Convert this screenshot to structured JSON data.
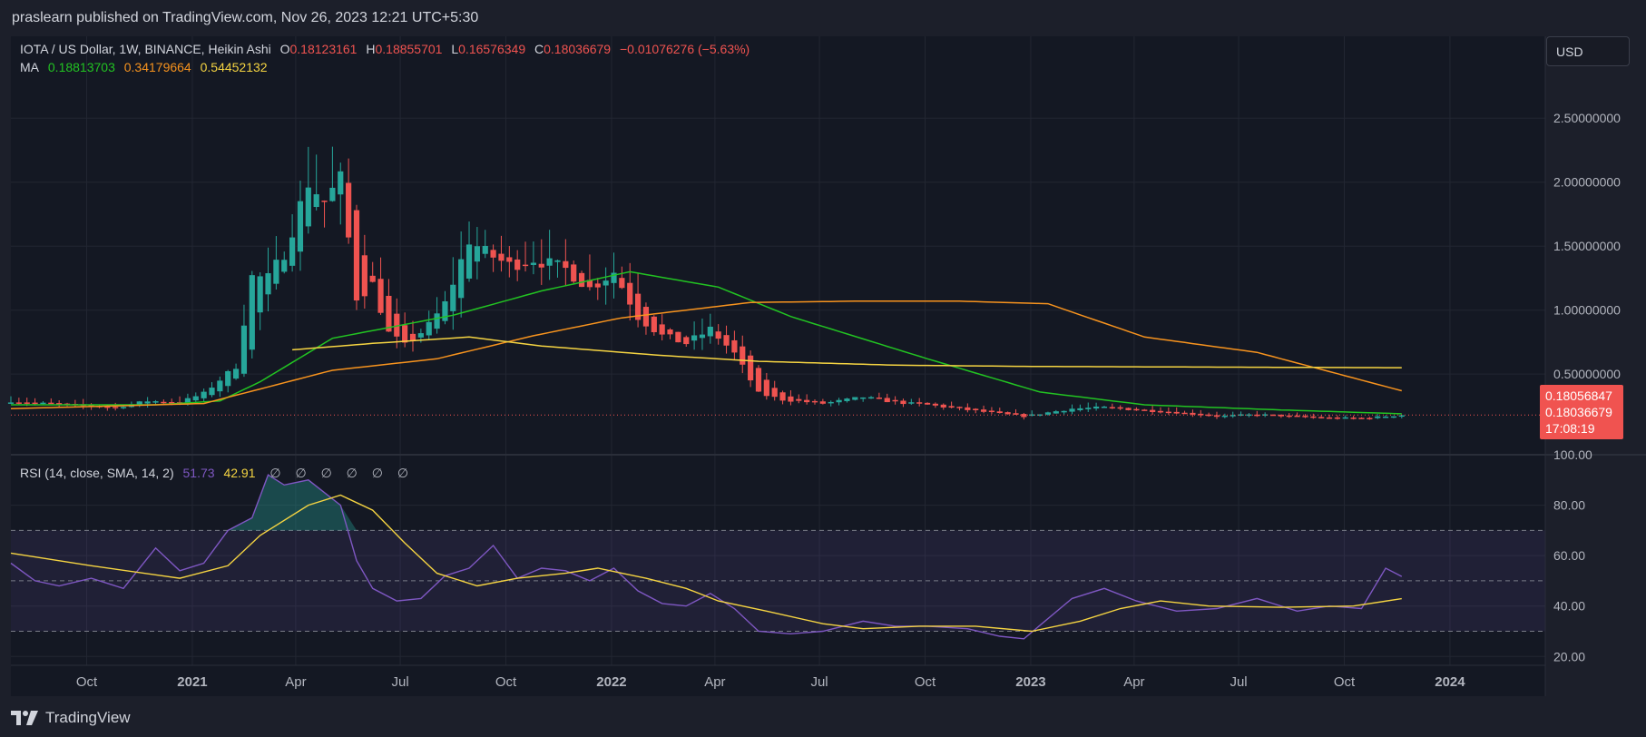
{
  "header": {
    "published": "praslearn published on TradingView.com, Nov 26, 2023 12:21 UTC+5:30"
  },
  "legend": {
    "symbol": "IOTA / US Dollar, 1W, BINANCE, Heikin Ashi",
    "o_label": "O",
    "o_value": "0.18123161",
    "h_label": "H",
    "h_value": "0.18855701",
    "l_label": "L",
    "l_value": "0.16576349",
    "c_label": "C",
    "c_value": "0.18036679",
    "change": "−0.01076276 (−5.63%)",
    "ma_label": "MA",
    "ma_values": [
      "0.18813703",
      "0.34179664",
      "0.54452132"
    ]
  },
  "rsi_legend": {
    "label": "RSI (14, close, SMA, 14, 2)",
    "rsi_value": "51.73",
    "rsi_ma_value": "42.91",
    "na_values": [
      "∅",
      "∅",
      "∅",
      "∅",
      "∅",
      "∅"
    ]
  },
  "currency_button": "USD",
  "last_price": {
    "label_1": "0.18056847",
    "label_2": "0.18036679",
    "countdown": "17:08:19",
    "value": 0.1804
  },
  "footer": {
    "brand": "TradingView"
  },
  "colors": {
    "background": "#1c1f2a",
    "up": "#26a69a",
    "down": "#ef5350",
    "ma1": "#22c322",
    "ma2": "#f7931e",
    "ma3": "#f5d442",
    "rsi": "#7e57c2",
    "rsi_ma": "#f5d442"
  },
  "chart_data": [
    {
      "type": "candlestick",
      "title": "IOTA / US Dollar, 1W, BINANCE, Heikin Ashi",
      "y_axis_labels": [
        "2.50000000",
        "2.00000000",
        "1.50000000",
        "1.00000000",
        "0.50000000"
      ],
      "y_ticks": [
        2.5,
        2.0,
        1.5,
        1.0,
        0.5
      ],
      "ylim": [
        -0.13,
        3.14
      ],
      "x_axis_labels": [
        "Oct",
        "2021",
        "Apr",
        "Jul",
        "Oct",
        "2022",
        "Apr",
        "Jul",
        "Oct",
        "2023",
        "Apr",
        "Jul",
        "Oct",
        "2024"
      ],
      "x_axis_dates": [
        "2020-10-01",
        "2021-01-01",
        "2021-04-01",
        "2021-07-01",
        "2021-10-01",
        "2022-01-01",
        "2022-04-01",
        "2022-07-01",
        "2022-10-01",
        "2023-01-01",
        "2023-04-01",
        "2023-07-01",
        "2023-10-01",
        "2024-01-01"
      ],
      "xlim": [
        "2020-07-27",
        "2024-03-24"
      ],
      "grid": true,
      "close_anchors": [
        [
          "2020-07-27",
          0.29
        ],
        [
          "2020-08-24",
          0.27
        ],
        [
          "2020-09-28",
          0.25
        ],
        [
          "2020-10-26",
          0.24
        ],
        [
          "2020-11-23",
          0.29
        ],
        [
          "2020-12-21",
          0.28
        ],
        [
          "2021-01-11",
          0.35
        ],
        [
          "2021-02-08",
          0.56
        ],
        [
          "2021-02-22",
          1.26
        ],
        [
          "2021-03-08",
          1.25
        ],
        [
          "2021-03-22",
          1.45
        ],
        [
          "2021-04-12",
          2.0
        ],
        [
          "2021-04-26",
          1.85
        ],
        [
          "2021-05-10",
          2.02
        ],
        [
          "2021-05-24",
          1.1
        ],
        [
          "2021-06-07",
          1.2
        ],
        [
          "2021-06-21",
          0.82
        ],
        [
          "2021-07-05",
          0.72
        ],
        [
          "2021-07-26",
          0.88
        ],
        [
          "2021-08-09",
          1.05
        ],
        [
          "2021-08-30",
          1.55
        ],
        [
          "2021-09-13",
          1.45
        ],
        [
          "2021-10-04",
          1.35
        ],
        [
          "2021-10-25",
          1.4
        ],
        [
          "2021-11-22",
          1.32
        ],
        [
          "2021-12-13",
          1.17
        ],
        [
          "2022-01-03",
          1.3
        ],
        [
          "2022-01-24",
          0.95
        ],
        [
          "2022-02-14",
          0.8
        ],
        [
          "2022-03-07",
          0.74
        ],
        [
          "2022-03-28",
          0.85
        ],
        [
          "2022-04-18",
          0.66
        ],
        [
          "2022-05-09",
          0.35
        ],
        [
          "2022-05-30",
          0.3
        ],
        [
          "2022-07-04",
          0.27
        ],
        [
          "2022-08-08",
          0.32
        ],
        [
          "2022-09-05",
          0.28
        ],
        [
          "2022-10-03",
          0.26
        ],
        [
          "2022-11-07",
          0.22
        ],
        [
          "2022-12-05",
          0.19
        ],
        [
          "2022-12-26",
          0.17
        ],
        [
          "2023-02-06",
          0.23
        ],
        [
          "2023-03-06",
          0.24
        ],
        [
          "2023-04-03",
          0.22
        ],
        [
          "2023-05-08",
          0.2
        ],
        [
          "2023-06-12",
          0.17
        ],
        [
          "2023-07-17",
          0.185
        ],
        [
          "2023-09-04",
          0.16
        ],
        [
          "2023-10-16",
          0.155
        ],
        [
          "2023-11-20",
          0.18
        ]
      ],
      "moving_averages": [
        {
          "name": "MA 0.18813703",
          "color": "#22c322",
          "points": [
            [
              "2020-07-27",
              0.26
            ],
            [
              "2020-11-30",
              0.26
            ],
            [
              "2021-01-25",
              0.29
            ],
            [
              "2021-03-01",
              0.44
            ],
            [
              "2021-05-03",
              0.78
            ],
            [
              "2021-08-16",
              0.96
            ],
            [
              "2021-11-01",
              1.15
            ],
            [
              "2022-01-17",
              1.3
            ],
            [
              "2022-04-04",
              1.18
            ],
            [
              "2022-06-06",
              0.95
            ],
            [
              "2022-10-03",
              0.62
            ],
            [
              "2023-01-09",
              0.36
            ],
            [
              "2023-04-10",
              0.26
            ],
            [
              "2023-08-07",
              0.22
            ],
            [
              "2023-11-20",
              0.19
            ]
          ]
        },
        {
          "name": "MA 0.34179664",
          "color": "#f7931e",
          "points": [
            [
              "2020-07-27",
              0.23
            ],
            [
              "2021-01-11",
              0.27
            ],
            [
              "2021-05-03",
              0.53
            ],
            [
              "2021-08-02",
              0.62
            ],
            [
              "2021-10-25",
              0.8
            ],
            [
              "2022-01-10",
              0.94
            ],
            [
              "2022-05-02",
              1.06
            ],
            [
              "2022-08-01",
              1.07
            ],
            [
              "2022-10-31",
              1.07
            ],
            [
              "2023-01-16",
              1.05
            ],
            [
              "2023-04-10",
              0.79
            ],
            [
              "2023-07-17",
              0.67
            ],
            [
              "2023-11-20",
              0.37
            ]
          ]
        },
        {
          "name": "MA 0.54452132",
          "color": "#f5d442",
          "points": [
            [
              "2021-03-29",
              0.69
            ],
            [
              "2021-06-07",
              0.74
            ],
            [
              "2021-08-30",
              0.79
            ],
            [
              "2021-11-01",
              0.72
            ],
            [
              "2022-02-07",
              0.65
            ],
            [
              "2022-05-09",
              0.6
            ],
            [
              "2022-09-05",
              0.57
            ],
            [
              "2023-01-02",
              0.56
            ],
            [
              "2023-06-05",
              0.555
            ],
            [
              "2023-11-20",
              0.55
            ]
          ]
        }
      ],
      "last_close": 0.18036679
    },
    {
      "type": "line",
      "title": "RSI (14, close, SMA, 14, 2)",
      "y_axis_labels": [
        "100.00",
        "80.00",
        "60.00",
        "40.00",
        "20.00"
      ],
      "y_ticks": [
        100,
        80,
        60,
        40,
        20
      ],
      "ylim": [
        16.5,
        100
      ],
      "bands": [
        30,
        50,
        70
      ],
      "series": [
        {
          "name": "RSI",
          "color": "#7e57c2",
          "points": [
            [
              "2020-07-27",
              57
            ],
            [
              "2020-08-17",
              50
            ],
            [
              "2020-09-07",
              48
            ],
            [
              "2020-10-05",
              51
            ],
            [
              "2020-11-02",
              47
            ],
            [
              "2020-11-30",
              63
            ],
            [
              "2020-12-21",
              54
            ],
            [
              "2021-01-11",
              57
            ],
            [
              "2021-02-01",
              70
            ],
            [
              "2021-02-22",
              75
            ],
            [
              "2021-03-08",
              92
            ],
            [
              "2021-03-22",
              88
            ],
            [
              "2021-04-12",
              90
            ],
            [
              "2021-04-26",
              85
            ],
            [
              "2021-05-10",
              80
            ],
            [
              "2021-05-24",
              58
            ],
            [
              "2021-06-07",
              47
            ],
            [
              "2021-06-28",
              42
            ],
            [
              "2021-07-19",
              43
            ],
            [
              "2021-08-09",
              52
            ],
            [
              "2021-08-30",
              55
            ],
            [
              "2021-09-20",
              64
            ],
            [
              "2021-10-11",
              51
            ],
            [
              "2021-11-01",
              55
            ],
            [
              "2021-11-22",
              54
            ],
            [
              "2021-12-13",
              50
            ],
            [
              "2022-01-03",
              55
            ],
            [
              "2022-01-24",
              46
            ],
            [
              "2022-02-14",
              41
            ],
            [
              "2022-03-07",
              40
            ],
            [
              "2022-03-28",
              45
            ],
            [
              "2022-04-18",
              39
            ],
            [
              "2022-05-09",
              30
            ],
            [
              "2022-06-06",
              29
            ],
            [
              "2022-07-04",
              30
            ],
            [
              "2022-08-08",
              34
            ],
            [
              "2022-09-05",
              32
            ],
            [
              "2022-10-03",
              32
            ],
            [
              "2022-11-07",
              31
            ],
            [
              "2022-12-05",
              28
            ],
            [
              "2022-12-26",
              27
            ],
            [
              "2023-02-06",
              43
            ],
            [
              "2023-03-06",
              47
            ],
            [
              "2023-04-03",
              42
            ],
            [
              "2023-05-08",
              38
            ],
            [
              "2023-06-12",
              39
            ],
            [
              "2023-07-17",
              43
            ],
            [
              "2023-08-21",
              38
            ],
            [
              "2023-09-18",
              40
            ],
            [
              "2023-10-16",
              39
            ],
            [
              "2023-11-06",
              55
            ],
            [
              "2023-11-20",
              51.73
            ]
          ]
        },
        {
          "name": "RSI-based MA",
          "color": "#f5d442",
          "points": [
            [
              "2020-07-27",
              61
            ],
            [
              "2020-10-05",
              56
            ],
            [
              "2020-12-21",
              51
            ],
            [
              "2021-02-01",
              56
            ],
            [
              "2021-03-01",
              68
            ],
            [
              "2021-04-12",
              80
            ],
            [
              "2021-05-10",
              84
            ],
            [
              "2021-06-07",
              78
            ],
            [
              "2021-07-05",
              65
            ],
            [
              "2021-08-02",
              53
            ],
            [
              "2021-09-06",
              48
            ],
            [
              "2021-10-11",
              51
            ],
            [
              "2021-11-22",
              53
            ],
            [
              "2021-12-20",
              55
            ],
            [
              "2022-01-31",
              51
            ],
            [
              "2022-03-07",
              47
            ],
            [
              "2022-04-04",
              42
            ],
            [
              "2022-05-16",
              38
            ],
            [
              "2022-07-04",
              33
            ],
            [
              "2022-08-08",
              31
            ],
            [
              "2022-09-26",
              32
            ],
            [
              "2022-11-14",
              32
            ],
            [
              "2023-01-02",
              30
            ],
            [
              "2023-02-13",
              34
            ],
            [
              "2023-03-20",
              39
            ],
            [
              "2023-04-24",
              42
            ],
            [
              "2023-06-05",
              40
            ],
            [
              "2023-08-07",
              39.5
            ],
            [
              "2023-10-09",
              40
            ],
            [
              "2023-11-20",
              42.91
            ]
          ]
        }
      ]
    }
  ]
}
